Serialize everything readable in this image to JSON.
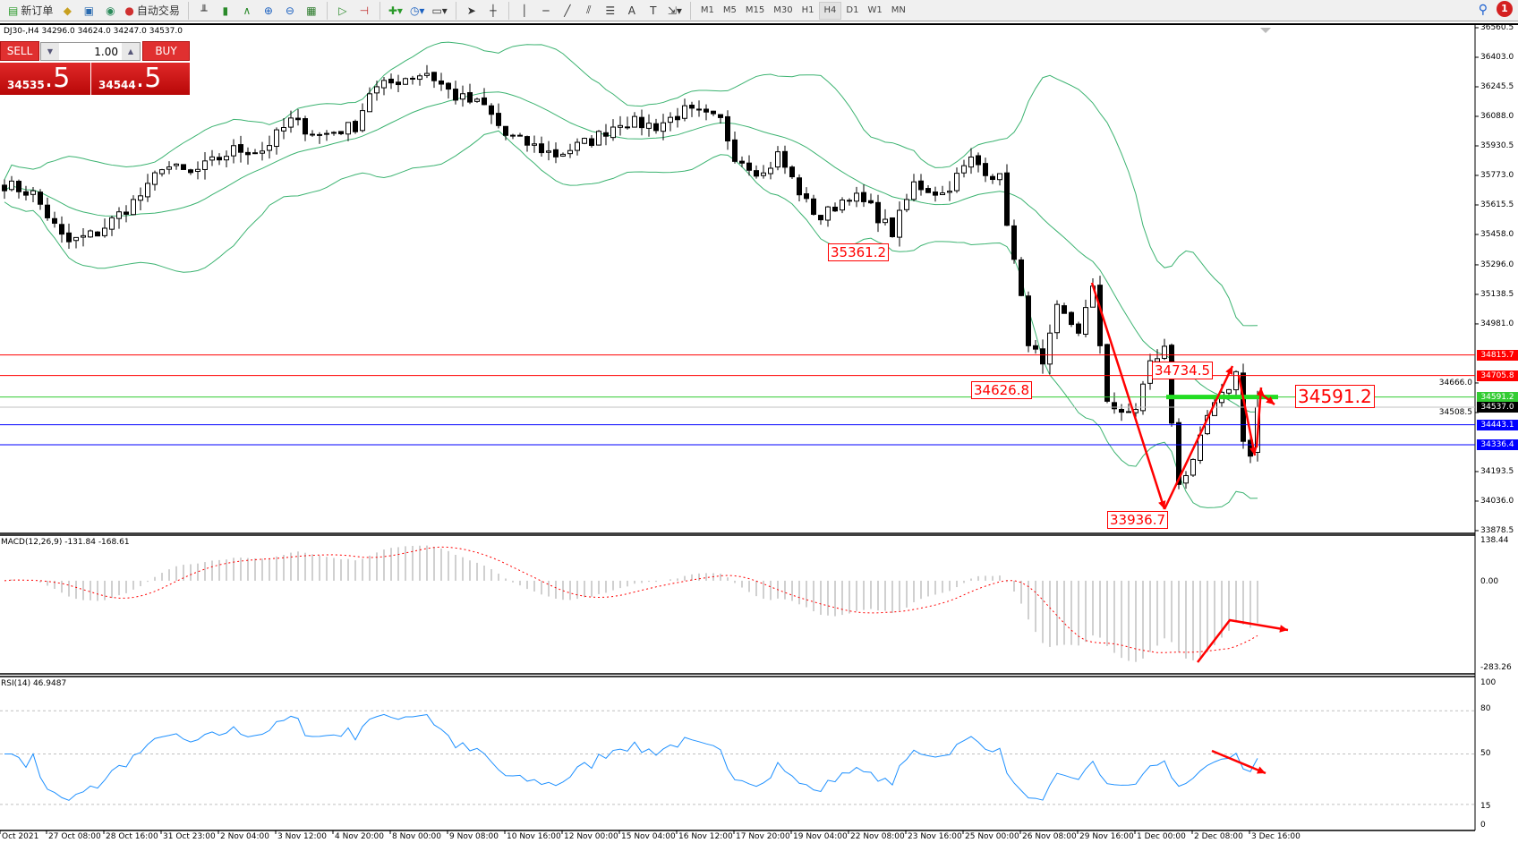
{
  "toolbar": {
    "new_order": "新订单",
    "auto_trading": "自动交易",
    "timeframes": [
      "M1",
      "M5",
      "M15",
      "M30",
      "H1",
      "H4",
      "D1",
      "W1",
      "MN"
    ],
    "active_timeframe": "H4",
    "notification_count": "1"
  },
  "chart": {
    "symbol_info": "DJ30-,H4  34296.0 34624.0 34247.0 34537.0",
    "macd_label": "MACD(12,26,9) -131.84 -168.61",
    "rsi_label": "RSI(14) 46.9487",
    "macd_axis": [
      "138.44",
      "0.00",
      "-283.26"
    ],
    "rsi_axis": [
      "100",
      "80",
      "50",
      "15",
      "0"
    ]
  },
  "trade_panel": {
    "sell_label": "SELL",
    "buy_label": "BUY",
    "lot": "1.00",
    "sell_main": "34535",
    "sell_frac": ".5",
    "buy_main": "34544",
    "buy_frac": ".5"
  },
  "price_axis": {
    "ticks": [
      "36560.5",
      "36403.0",
      "36245.5",
      "36088.0",
      "35930.5",
      "35773.0",
      "35615.5",
      "35458.0",
      "35296.0",
      "35138.5",
      "34981.0",
      "34666.0",
      "34508.5",
      "34193.5",
      "34036.0",
      "33878.5"
    ]
  },
  "levels": [
    {
      "label": "34815.7",
      "price": 34815.7,
      "color": "#ff0000"
    },
    {
      "label": "34705.8",
      "price": 34705.8,
      "color": "#ff0000"
    },
    {
      "label": "34591.2",
      "price": 34591.2,
      "color": "#33cc33"
    },
    {
      "label": "34537.0",
      "price": 34537.0,
      "color": "#000000"
    },
    {
      "label": "34443.1",
      "price": 34443.1,
      "color": "#0000ff"
    },
    {
      "label": "34336.4",
      "price": 34336.4,
      "color": "#0000ff"
    }
  ],
  "annotations": [
    "35361.2",
    "34626.8",
    "34734.5",
    "33936.7",
    "34591.2"
  ],
  "time_axis": [
    "Oct 2021",
    "27 Oct 08:00",
    "28 Oct 16:00",
    "31 Oct 23:00",
    "2 Nov 04:00",
    "3 Nov 12:00",
    "4 Nov 20:00",
    "8 Nov 00:00",
    "9 Nov 08:00",
    "10 Nov 16:00",
    "12 Nov 00:00",
    "15 Nov 04:00",
    "16 Nov 12:00",
    "17 Nov 20:00",
    "19 Nov 04:00",
    "22 Nov 08:00",
    "23 Nov 16:00",
    "25 Nov 00:00",
    "26 Nov 08:00",
    "29 Nov 16:00",
    "1 Dec 00:00",
    "2 Dec 08:00",
    "3 Dec 16:00"
  ],
  "chart_data": {
    "type": "candlestick",
    "symbol": "DJ30-",
    "timeframe": "H4",
    "ylim": [
      33878.5,
      36560.5
    ],
    "close_path": [
      [
        0,
        35726
      ],
      [
        4,
        35675
      ],
      [
        8,
        35442
      ],
      [
        9,
        35416
      ],
      [
        13,
        35468
      ],
      [
        17,
        35597
      ],
      [
        20,
        35701
      ],
      [
        22,
        35830
      ],
      [
        26,
        35778
      ],
      [
        32,
        35908
      ],
      [
        36,
        35908
      ],
      [
        40,
        36063
      ],
      [
        44,
        35986
      ],
      [
        49,
        36037
      ],
      [
        51,
        36219
      ],
      [
        56,
        36296
      ],
      [
        59,
        36322
      ],
      [
        63,
        36193
      ],
      [
        67,
        36141
      ],
      [
        70,
        35986
      ],
      [
        77,
        35882
      ],
      [
        82,
        35960
      ],
      [
        86,
        36063
      ],
      [
        91,
        36037
      ],
      [
        95,
        36115
      ],
      [
        100,
        36063
      ],
      [
        102,
        35882
      ],
      [
        106,
        35778
      ],
      [
        108,
        35882
      ],
      [
        112,
        35623
      ],
      [
        114,
        35545
      ],
      [
        118,
        35675
      ],
      [
        121,
        35597
      ],
      [
        124,
        35468
      ],
      [
        127,
        35726
      ],
      [
        131,
        35675
      ],
      [
        135,
        35856
      ],
      [
        139,
        35753
      ],
      [
        141,
        35312
      ],
      [
        143,
        34897
      ],
      [
        145,
        34742
      ],
      [
        147,
        35053
      ],
      [
        150,
        34949
      ],
      [
        152,
        35156
      ],
      [
        154,
        34587
      ],
      [
        156,
        34483
      ],
      [
        158,
        34535
      ],
      [
        160,
        34768
      ],
      [
        162,
        34846
      ],
      [
        163,
        34457
      ],
      [
        164,
        34146
      ],
      [
        166,
        34224
      ],
      [
        168,
        34483
      ],
      [
        170,
        34587
      ],
      [
        172,
        34716
      ],
      [
        173,
        34380
      ],
      [
        174,
        34276
      ],
      [
        175,
        34537
      ]
    ],
    "indicators": [
      "Bollinger Bands",
      "MACD(12,26,9)",
      "RSI(14)"
    ],
    "macd": {
      "main": -131.84,
      "signal": -168.61,
      "ylim": [
        -283.26,
        138.44
      ]
    },
    "rsi": {
      "value": 46.9487,
      "levels": [
        80,
        50,
        15
      ],
      "ylim": [
        0,
        100
      ]
    }
  }
}
